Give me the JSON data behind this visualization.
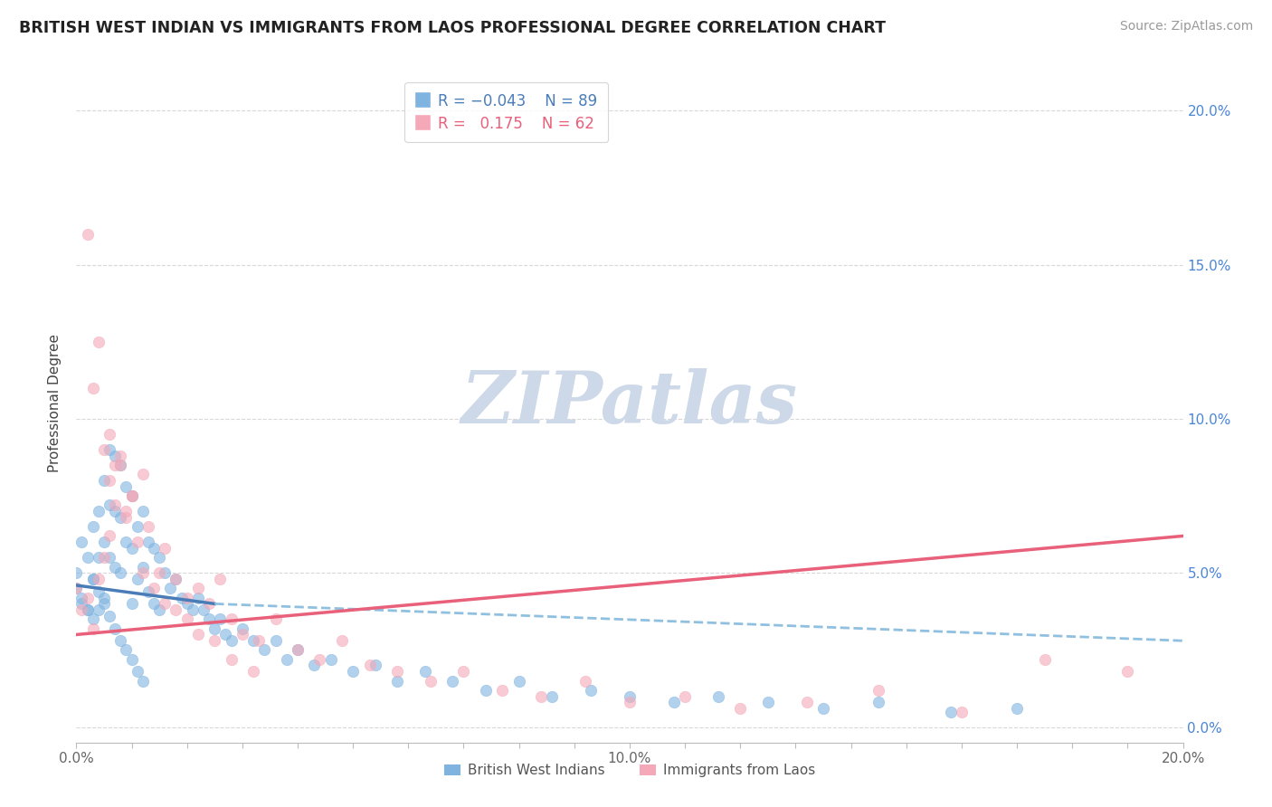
{
  "title": "BRITISH WEST INDIAN VS IMMIGRANTS FROM LAOS PROFESSIONAL DEGREE CORRELATION CHART",
  "source_text": "Source: ZipAtlas.com",
  "ylabel": "Professional Degree",
  "xlim": [
    0.0,
    0.2
  ],
  "ylim": [
    -0.005,
    0.215
  ],
  "ytick_values": [
    0.0,
    0.05,
    0.1,
    0.15,
    0.2
  ],
  "ytick_labels_right": [
    "0.0%",
    "5.0%",
    "10.0%",
    "15.0%",
    "20.0%"
  ],
  "color_blue": "#7fb3e0",
  "color_pink": "#f4a8b8",
  "trend_blue_solid": "#4a7db8",
  "trend_blue_dash": "#90c0e0",
  "trend_pink": "#e8607a",
  "watermark_color": "#cdd8e8",
  "background_color": "#ffffff",
  "grid_color": "#d8d8d8",
  "blue_scatter_x": [
    0.0,
    0.001,
    0.001,
    0.002,
    0.002,
    0.003,
    0.003,
    0.003,
    0.004,
    0.004,
    0.004,
    0.005,
    0.005,
    0.005,
    0.006,
    0.006,
    0.006,
    0.007,
    0.007,
    0.007,
    0.008,
    0.008,
    0.008,
    0.009,
    0.009,
    0.01,
    0.01,
    0.01,
    0.011,
    0.011,
    0.012,
    0.012,
    0.013,
    0.013,
    0.014,
    0.014,
    0.015,
    0.015,
    0.016,
    0.017,
    0.018,
    0.019,
    0.02,
    0.021,
    0.022,
    0.023,
    0.024,
    0.025,
    0.026,
    0.027,
    0.028,
    0.03,
    0.032,
    0.034,
    0.036,
    0.038,
    0.04,
    0.043,
    0.046,
    0.05,
    0.054,
    0.058,
    0.063,
    0.068,
    0.074,
    0.08,
    0.086,
    0.093,
    0.1,
    0.108,
    0.116,
    0.125,
    0.135,
    0.145,
    0.158,
    0.17,
    0.0,
    0.001,
    0.002,
    0.003,
    0.004,
    0.005,
    0.006,
    0.007,
    0.008,
    0.009,
    0.01,
    0.011,
    0.012
  ],
  "blue_scatter_y": [
    0.05,
    0.06,
    0.04,
    0.055,
    0.038,
    0.065,
    0.048,
    0.035,
    0.07,
    0.055,
    0.038,
    0.08,
    0.06,
    0.042,
    0.09,
    0.072,
    0.055,
    0.088,
    0.07,
    0.052,
    0.085,
    0.068,
    0.05,
    0.078,
    0.06,
    0.075,
    0.058,
    0.04,
    0.065,
    0.048,
    0.07,
    0.052,
    0.06,
    0.044,
    0.058,
    0.04,
    0.055,
    0.038,
    0.05,
    0.045,
    0.048,
    0.042,
    0.04,
    0.038,
    0.042,
    0.038,
    0.035,
    0.032,
    0.035,
    0.03,
    0.028,
    0.032,
    0.028,
    0.025,
    0.028,
    0.022,
    0.025,
    0.02,
    0.022,
    0.018,
    0.02,
    0.015,
    0.018,
    0.015,
    0.012,
    0.015,
    0.01,
    0.012,
    0.01,
    0.008,
    0.01,
    0.008,
    0.006,
    0.008,
    0.005,
    0.006,
    0.045,
    0.042,
    0.038,
    0.048,
    0.044,
    0.04,
    0.036,
    0.032,
    0.028,
    0.025,
    0.022,
    0.018,
    0.015
  ],
  "pink_scatter_x": [
    0.0,
    0.001,
    0.002,
    0.003,
    0.004,
    0.005,
    0.006,
    0.006,
    0.007,
    0.008,
    0.009,
    0.01,
    0.011,
    0.012,
    0.013,
    0.015,
    0.016,
    0.018,
    0.02,
    0.022,
    0.024,
    0.026,
    0.028,
    0.03,
    0.033,
    0.036,
    0.04,
    0.044,
    0.048,
    0.053,
    0.058,
    0.064,
    0.07,
    0.077,
    0.084,
    0.092,
    0.1,
    0.11,
    0.12,
    0.132,
    0.145,
    0.16,
    0.175,
    0.19,
    0.002,
    0.003,
    0.004,
    0.005,
    0.006,
    0.007,
    0.008,
    0.009,
    0.01,
    0.012,
    0.014,
    0.016,
    0.018,
    0.02,
    0.022,
    0.025,
    0.028,
    0.032
  ],
  "pink_scatter_y": [
    0.045,
    0.038,
    0.042,
    0.032,
    0.048,
    0.055,
    0.08,
    0.062,
    0.072,
    0.085,
    0.068,
    0.075,
    0.06,
    0.082,
    0.065,
    0.05,
    0.058,
    0.048,
    0.042,
    0.045,
    0.04,
    0.048,
    0.035,
    0.03,
    0.028,
    0.035,
    0.025,
    0.022,
    0.028,
    0.02,
    0.018,
    0.015,
    0.018,
    0.012,
    0.01,
    0.015,
    0.008,
    0.01,
    0.006,
    0.008,
    0.012,
    0.005,
    0.022,
    0.018,
    0.16,
    0.11,
    0.125,
    0.09,
    0.095,
    0.085,
    0.088,
    0.07,
    0.075,
    0.05,
    0.045,
    0.04,
    0.038,
    0.035,
    0.03,
    0.028,
    0.022,
    0.018
  ],
  "blue_trend_x0": 0.0,
  "blue_trend_x_break": 0.025,
  "blue_trend_x1": 0.2,
  "blue_trend_y0": 0.046,
  "blue_trend_y_break": 0.04,
  "blue_trend_y1": 0.028,
  "pink_trend_x0": 0.0,
  "pink_trend_x1": 0.2,
  "pink_trend_y0": 0.03,
  "pink_trend_y1": 0.062
}
